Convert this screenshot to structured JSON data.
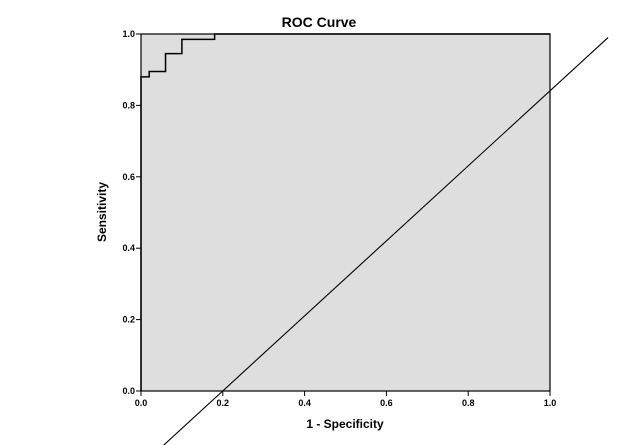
{
  "chart_data": {
    "type": "line",
    "title": "ROC Curve",
    "xlabel": "1 - Specificity",
    "ylabel": "Sensitivity",
    "xlim": [
      0,
      1
    ],
    "ylim": [
      0,
      1
    ],
    "x_ticks": [
      "0.0",
      "0.2",
      "0.4",
      "0.6",
      "0.8",
      "1.0"
    ],
    "y_ticks": [
      "0.0",
      "0.2",
      "0.4",
      "0.6",
      "0.8",
      "1.0"
    ],
    "grid": false,
    "legend": "none",
    "plot_background": "#dedede",
    "series": [
      {
        "kind": "step",
        "color": "#000000",
        "points": [
          [
            0.0,
            0.0
          ],
          [
            0.0,
            0.88
          ],
          [
            0.02,
            0.88
          ],
          [
            0.02,
            0.895
          ],
          [
            0.06,
            0.895
          ],
          [
            0.06,
            0.945
          ],
          [
            0.1,
            0.945
          ],
          [
            0.1,
            0.985
          ],
          [
            0.18,
            0.985
          ],
          [
            0.18,
            1.0
          ],
          [
            1.0,
            1.0
          ]
        ]
      },
      {
        "kind": "reference",
        "color": "#000000",
        "points": [
          [
            0.038,
            -0.17
          ],
          [
            1.142,
            0.99
          ]
        ]
      }
    ]
  }
}
